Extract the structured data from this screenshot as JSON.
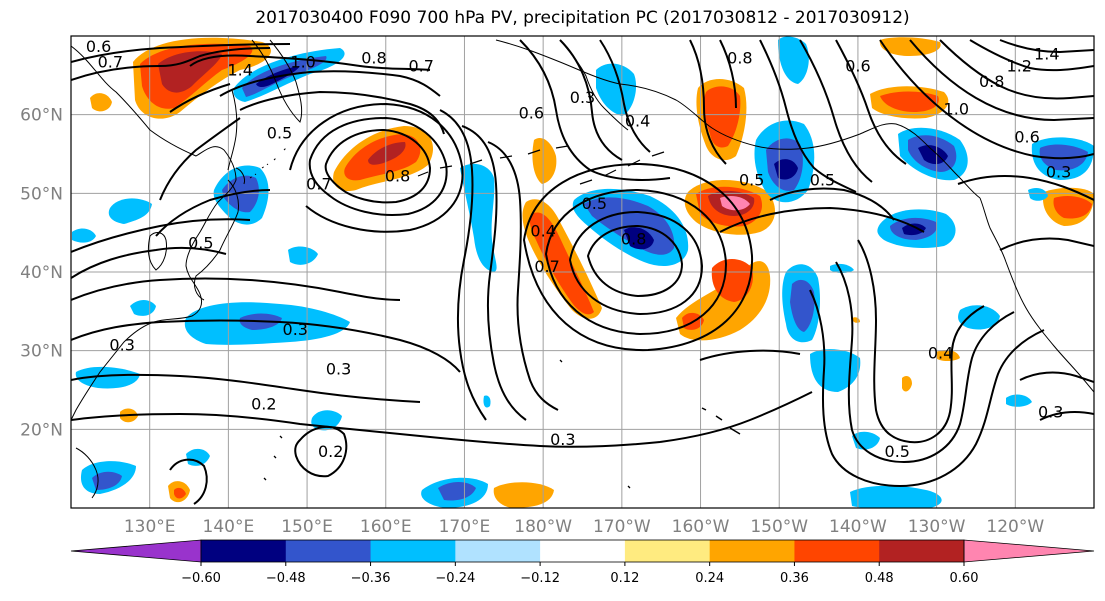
{
  "title": "2017030400 F090 700 hPa PV, precipitation PC (2017030812 - 2017030912)",
  "axes": {
    "lat_labels": [
      "60°N",
      "50°N",
      "40°N",
      "30°N",
      "20°N"
    ],
    "lon_labels": [
      "130°E",
      "140°E",
      "150°E",
      "160°E",
      "170°E",
      "180°W",
      "170°W",
      "160°W",
      "150°W",
      "140°W",
      "130°W",
      "120°W"
    ],
    "label_color": "#808080",
    "lat_range": [
      10,
      70
    ],
    "lon_range": [
      120,
      250
    ]
  },
  "colorbar": {
    "tick_labels": [
      "−0.60",
      "−0.48",
      "−0.36",
      "−0.24",
      "−0.12",
      "0.12",
      "0.24",
      "0.36",
      "0.48",
      "0.60"
    ],
    "colors": [
      "#9933cc",
      "#000080",
      "#3355cc",
      "#00bfff",
      "#b0e2ff",
      "#ffffff",
      "#ffeb80",
      "#ffa500",
      "#ff4500",
      "#b22222",
      "#ff85b0"
    ]
  },
  "contour_labels": [
    {
      "text": "0.6",
      "lon": 123.5,
      "lat": 68.5
    },
    {
      "text": "0.7",
      "lon": 125,
      "lat": 66.5
    },
    {
      "text": "1.4",
      "lon": 141.5,
      "lat": 65.5
    },
    {
      "text": "1.0",
      "lon": 149.5,
      "lat": 66.5
    },
    {
      "text": "0.8",
      "lon": 158.5,
      "lat": 67
    },
    {
      "text": "0.7",
      "lon": 164.5,
      "lat": 66
    },
    {
      "text": "0.5",
      "lon": 146.5,
      "lat": 57.5
    },
    {
      "text": "0.7",
      "lon": 151.5,
      "lat": 51
    },
    {
      "text": "0.8",
      "lon": 161.5,
      "lat": 52
    },
    {
      "text": "0.5",
      "lon": 136.5,
      "lat": 43.5
    },
    {
      "text": "0.3",
      "lon": 148.5,
      "lat": 32.5
    },
    {
      "text": "0.3",
      "lon": 126.5,
      "lat": 30.5
    },
    {
      "text": "0.3",
      "lon": 154,
      "lat": 27.5
    },
    {
      "text": "0.2",
      "lon": 144.5,
      "lat": 23
    },
    {
      "text": "0.2",
      "lon": 153,
      "lat": 17
    },
    {
      "text": "0.3",
      "lon": 182.5,
      "lat": 18.5
    },
    {
      "text": "0.4",
      "lon": 180,
      "lat": 45
    },
    {
      "text": "0.5",
      "lon": 186.5,
      "lat": 48.5
    },
    {
      "text": "0.8",
      "lon": 191.5,
      "lat": 44
    },
    {
      "text": "0.7",
      "lon": 180.5,
      "lat": 40.5
    },
    {
      "text": "0.6",
      "lon": 178.5,
      "lat": 60
    },
    {
      "text": "0.3",
      "lon": 185,
      "lat": 62
    },
    {
      "text": "0.4",
      "lon": 192,
      "lat": 59
    },
    {
      "text": "0.8",
      "lon": 205,
      "lat": 67
    },
    {
      "text": "0.5",
      "lon": 206.5,
      "lat": 51.5
    },
    {
      "text": "0.5",
      "lon": 215.5,
      "lat": 51.5
    },
    {
      "text": "0.6",
      "lon": 220,
      "lat": 66
    },
    {
      "text": "1.0",
      "lon": 232.5,
      "lat": 60.5
    },
    {
      "text": "0.8",
      "lon": 237,
      "lat": 64
    },
    {
      "text": "1.2",
      "lon": 240.5,
      "lat": 66
    },
    {
      "text": "1.4",
      "lon": 244,
      "lat": 67.5
    },
    {
      "text": "0.6",
      "lon": 241.5,
      "lat": 57
    },
    {
      "text": "0.3",
      "lon": 245.5,
      "lat": 52.5
    },
    {
      "text": "0.4",
      "lon": 230.5,
      "lat": 29.5
    },
    {
      "text": "0.5",
      "lon": 225,
      "lat": 17
    },
    {
      "text": "0.3",
      "lon": 244.5,
      "lat": 22
    }
  ],
  "contour_color": "#000000"
}
